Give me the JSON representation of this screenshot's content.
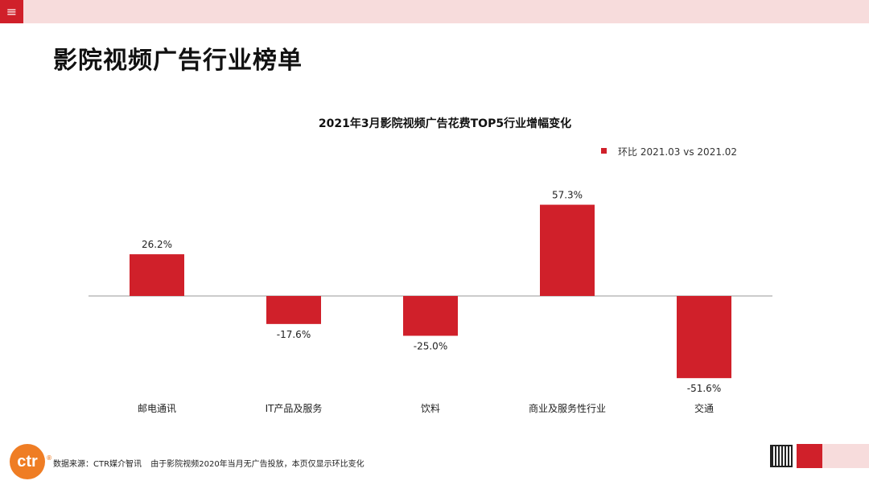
{
  "header": {
    "menu_icon": "≡",
    "title": "影院视频广告行业榜单"
  },
  "colors": {
    "accent": "#d0202a",
    "bar": "#d0202a",
    "top_bar": "#f7dcdc",
    "logo": "#ef7d24"
  },
  "chart_data": {
    "type": "bar",
    "title": "2021年3月影院视频广告花费TOP5行业增幅变化",
    "legend": "环比 2021.03 vs 2021.02",
    "legend_position": "top-right",
    "categories": [
      "邮电通讯",
      "IT产品及服务",
      "饮料",
      "商业及服务性行业",
      "交通"
    ],
    "values": [
      26.2,
      -17.6,
      -25.0,
      57.3,
      -51.6
    ],
    "labels": [
      "26.2%",
      "-17.6%",
      "-25.0%",
      "57.3%",
      "-51.6%"
    ],
    "ylim": [
      -60,
      70
    ],
    "xlabel": "",
    "ylabel": "",
    "grid": false
  },
  "footer": {
    "logo": "ctr",
    "logo_mark": "®",
    "source": "数据来源：CTR媒介智讯",
    "note": "由于影院视频2020年当月无广告投放，本页仅显示环比变化"
  }
}
